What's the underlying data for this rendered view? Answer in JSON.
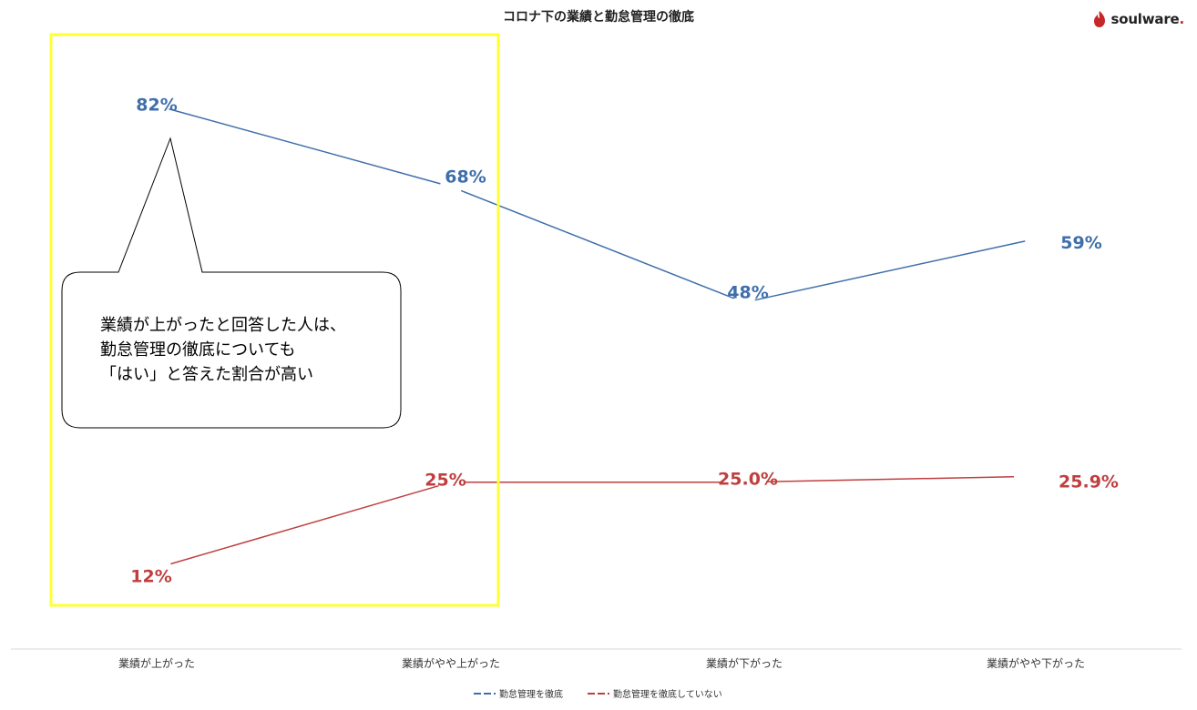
{
  "title": "コロナ下の業績と勤怠管理の徹底",
  "brand": {
    "name": "soulware",
    "dot": ".",
    "color": "#c62828"
  },
  "callout": {
    "lines": [
      "業績が上がったと回答した人は、",
      "勤怠管理の徹底についても",
      "「はい」と答えた割合が高い"
    ]
  },
  "highlight_color": "#ffff33",
  "chart_data": {
    "type": "line",
    "title": "コロナ下の業績と勤怠管理の徹底",
    "categories": [
      "業績が上がった",
      "業績がやや上がった",
      "業績が下がった",
      "業績がやや下がった"
    ],
    "series": [
      {
        "name": "勤怠管理を徹底",
        "values": [
          82,
          68,
          48,
          59
        ],
        "labels": [
          "82%",
          "68%",
          "48%",
          "59%"
        ],
        "color": "#3f6faa"
      },
      {
        "name": "勤怠管理を徹底していない",
        "values": [
          12,
          25,
          25.0,
          25.9
        ],
        "labels": [
          "12%",
          "25%",
          "25.0%",
          "25.9%"
        ],
        "color": "#bf3f3f"
      }
    ],
    "legend_position": "bottom-center",
    "grid": false
  }
}
